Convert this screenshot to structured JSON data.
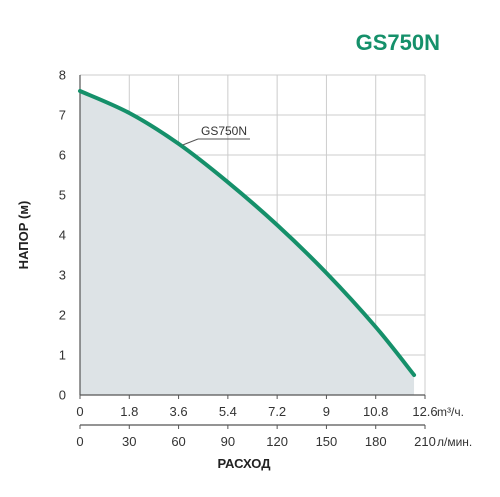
{
  "chart_data": {
    "type": "area",
    "title": "GS750N",
    "ylabel": "НАПОР (м)",
    "xlabel": "РАСХОД",
    "series": [
      {
        "name": "GS750N",
        "x": [
          0,
          1.8,
          3.6,
          5.4,
          7.2,
          9,
          10.8,
          12.2
        ],
        "values": [
          7.6,
          7.05,
          6.28,
          5.32,
          4.25,
          3.05,
          1.7,
          0.5
        ]
      }
    ],
    "x_primary": {
      "unit": "m³/ч.",
      "ticks": [
        0,
        1.8,
        3.6,
        5.4,
        7.2,
        9,
        10.8,
        12.6
      ],
      "range": [
        0,
        12.6
      ]
    },
    "x_secondary": {
      "unit": "л/мин.",
      "ticks": [
        0,
        30,
        60,
        90,
        120,
        150,
        180,
        210
      ],
      "range": [
        0,
        210
      ]
    },
    "y_axis": {
      "ticks": [
        0,
        1,
        2,
        3,
        4,
        5,
        6,
        7,
        8
      ],
      "range": [
        0,
        8
      ]
    },
    "grid": true,
    "colors": {
      "curve": "#15906a",
      "fill": "#dde3e6",
      "title": "#15906a",
      "axis": "#555555",
      "grid": "#cccccc"
    }
  }
}
